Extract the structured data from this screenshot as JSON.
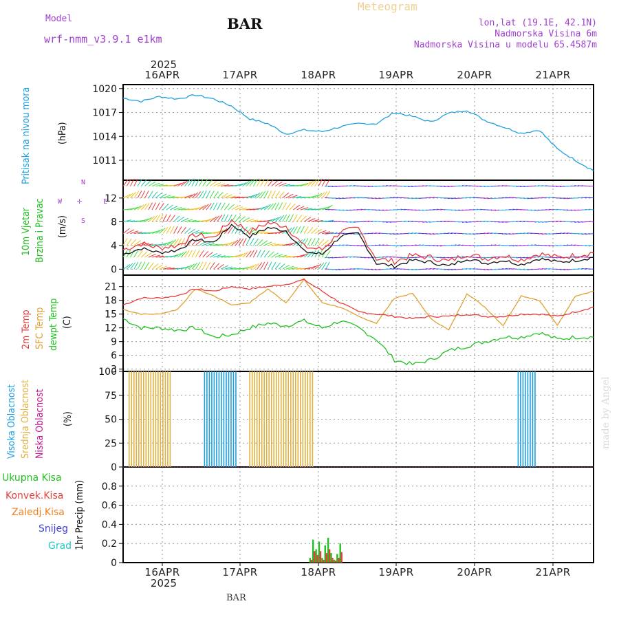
{
  "header": {
    "model_label": "Model",
    "model_name": "wrf-nmm_v3.9.1  e1km",
    "station": "BAR",
    "title": "Meteogram",
    "coords": "lon,lat (19.1E, 42.1N)",
    "elevation": "Nadmorska Visina 6m",
    "model_elevation": "Nadmorska Visina u modelu 65.4587m"
  },
  "footer": {
    "station": "BAR",
    "credit": "made by Angel"
  },
  "axis": {
    "year": "2025",
    "dates": [
      "16APR",
      "17APR",
      "18APR",
      "19APR",
      "20APR",
      "21APR"
    ]
  },
  "colors": {
    "pressure": "#1ea0e0",
    "temp2m": "#e83c3c",
    "sfc": "#e0a030",
    "dewpt": "#20c020",
    "high_cloud": "#1ea0e0",
    "mid_cloud": "#e0b040",
    "low_cloud": "#c01890",
    "grad": "#20c8c8",
    "snow": "#4040e0",
    "frozen": "#f08020"
  },
  "panels": {
    "pressure": {
      "label": "Pritisak na nivou mora",
      "unit": "(hPa)"
    },
    "wind": {
      "label1": "10m Vjetar",
      "label2": "Brzina i Pravac",
      "unit": "(m/s)",
      "compass_w": "W",
      "compass_e": "E",
      "compass_n": "N",
      "compass_s": "S"
    },
    "temp": {
      "label1": "2m Temp",
      "label2": "SFC Temp",
      "label3": "dewpt Temp",
      "unit": "(C)"
    },
    "cloud": {
      "label1": "Visoka Oblacnost",
      "label2": "Srednja Oblacnost",
      "label3": "Niska Oblacnost",
      "unit": "(%)"
    },
    "precip": {
      "label": "1hr Precip (mm)",
      "legend": [
        "Ukupna Kisa",
        "Konvek.Kisa",
        "Zaledj.Kisa",
        "Snijeg",
        "Grad"
      ]
    }
  },
  "chart_data": [
    {
      "type": "line",
      "title": "Pritisak na nivou mora",
      "ylabel": "(hPa)",
      "ylim": [
        1008.5,
        1020.5
      ],
      "yticks": [
        1011,
        1014,
        1017,
        1020
      ],
      "x_hours": [
        0,
        6,
        12,
        18,
        24,
        30,
        36,
        42,
        48,
        54,
        60,
        66,
        72,
        78,
        84,
        90,
        96,
        102,
        108,
        114,
        120,
        126,
        132,
        138,
        144,
        150,
        156
      ],
      "series": [
        {
          "values": [
            1018.8,
            1018.4,
            1019.0,
            1018.7,
            1019.2,
            1018.7,
            1017.8,
            1016.2,
            1015.6,
            1014.3,
            1014.8,
            1014.6,
            1015.2,
            1015.6,
            1015.6,
            1017.0,
            1016.5,
            1015.8,
            1016.9,
            1017.3,
            1016.0,
            1015.2,
            1014.4,
            1014.8,
            1012.4,
            1011.0,
            1009.7
          ]
        }
      ]
    },
    {
      "type": "line",
      "title": "10m Vjetar Brzina i Pravac",
      "ylabel": "(m/s)",
      "ylim": [
        -1,
        15
      ],
      "yticks": [
        0,
        4,
        8,
        12
      ],
      "x_hours": [
        0,
        6,
        12,
        18,
        24,
        30,
        36,
        42,
        48,
        54,
        60,
        66,
        72,
        78,
        84,
        90,
        96,
        102,
        108,
        114,
        120,
        126,
        132,
        138,
        144,
        150,
        156
      ],
      "series": [
        {
          "values": [
            2.5,
            3.5,
            2.8,
            3.2,
            5.0,
            4.5,
            7.5,
            5.5,
            7.0,
            6.5,
            3.0,
            2.5,
            5.5,
            6.0,
            1.0,
            0.5,
            1.5,
            1.2,
            0.5,
            1.8,
            1.0,
            1.5,
            0.8,
            1.8,
            1.2,
            1.5,
            2.0
          ]
        }
      ]
    },
    {
      "type": "line",
      "title": "2m Temp / SFC Temp / dewpt Temp",
      "ylabel": "(C)",
      "ylim": [
        2.5,
        23.5
      ],
      "yticks": [
        3,
        6,
        9,
        12,
        15,
        18,
        21
      ],
      "x_hours": [
        0,
        6,
        12,
        18,
        24,
        30,
        36,
        42,
        48,
        54,
        60,
        66,
        72,
        78,
        84,
        90,
        96,
        102,
        108,
        114,
        120,
        126,
        132,
        138,
        144,
        150,
        156
      ],
      "series": [
        {
          "name": "2m Temp",
          "values": [
            17,
            18.5,
            18.5,
            19,
            20.5,
            20,
            21,
            20.5,
            21,
            21.5,
            22.5,
            20,
            17.5,
            15.5,
            15,
            14.5,
            14,
            14.5,
            14.5,
            15,
            14.5,
            14.5,
            15,
            15,
            14.5,
            15.5,
            16.5
          ]
        },
        {
          "name": "SFC Temp",
          "values": [
            16,
            15,
            15,
            16,
            20.5,
            19,
            17,
            17.5,
            20.5,
            17.5,
            22.5,
            17.5,
            16.5,
            14.5,
            13,
            18.5,
            19.5,
            14,
            11.5,
            19.5,
            16.5,
            12.5,
            19,
            18,
            12.5,
            19,
            20
          ]
        },
        {
          "name": "dewpt Temp",
          "values": [
            14,
            12,
            12,
            11.5,
            12,
            10,
            10.5,
            12,
            13,
            12.5,
            13.5,
            12,
            13.5,
            12,
            9.5,
            5,
            4,
            5,
            7,
            8,
            9,
            10,
            10,
            11,
            9.5,
            10,
            10
          ]
        }
      ]
    },
    {
      "type": "bar",
      "title": "Visoka / Srednja / Niska Oblacnost",
      "ylabel": "(%)",
      "ylim": [
        0,
        100
      ],
      "yticks": [
        0,
        25,
        50,
        75,
        100
      ],
      "groups": [
        {
          "name": "Srednja Oblacnost",
          "from_hour": 2,
          "to_hour": 16,
          "value": 100
        },
        {
          "name": "Visoka Oblacnost",
          "from_hour": 27,
          "to_hour": 38,
          "value": 100
        },
        {
          "name": "Srednja Oblacnost",
          "from_hour": 42,
          "to_hour": 63,
          "value": 100
        },
        {
          "name": "Visoka Oblacnost",
          "from_hour": 131,
          "to_hour": 137,
          "value": 100
        }
      ]
    },
    {
      "type": "bar",
      "title": "1hr Precip",
      "ylabel": "1hr Precip (mm)",
      "ylim": [
        0,
        1.0
      ],
      "yticks": [
        0,
        0.2,
        0.4,
        0.6,
        0.8
      ],
      "categories_hour": [
        62,
        63,
        64,
        65,
        66,
        67,
        68,
        69,
        70,
        71,
        72
      ],
      "series": [
        {
          "name": "Ukupna Kisa",
          "values": [
            0.05,
            0.24,
            0.14,
            0.22,
            0.05,
            0.18,
            0.26,
            0.1,
            0.03,
            0.09,
            0.2
          ]
        },
        {
          "name": "Konvek.Kisa",
          "values": [
            0.03,
            0.12,
            0.08,
            0.12,
            0.03,
            0.1,
            0.14,
            0.05,
            0.02,
            0.05,
            0.11
          ]
        }
      ]
    }
  ]
}
